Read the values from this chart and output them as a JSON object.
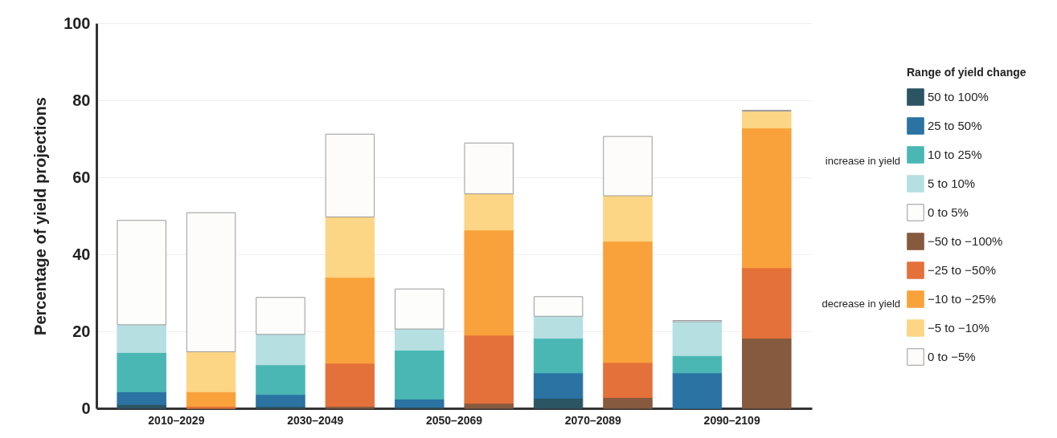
{
  "chart_data": {
    "type": "bar",
    "stacked": true,
    "ylabel": "Percentage of yield projections",
    "legend_title": "Range of yield change",
    "legend": "right",
    "grid": "y",
    "categories": [
      "2010–2029",
      null,
      "2030–2049",
      null,
      "2050–2069",
      null,
      "2070–2089",
      null,
      "2090–2109",
      null
    ],
    "ylim": [
      0,
      100
    ],
    "yticks": [
      0,
      20,
      40,
      60,
      80,
      100
    ],
    "series": [
      {
        "name": "50 to 100%",
        "color": "#2b5563",
        "values": [
          1,
          null,
          0.5,
          null,
          0.3,
          null,
          2.6,
          null,
          0,
          null
        ]
      },
      {
        "name": "25 to 50%",
        "color": "#2a73a3",
        "values": [
          3.3,
          null,
          3.1,
          null,
          2.1,
          null,
          6.6,
          null,
          9.2,
          null
        ]
      },
      {
        "name": "10 to 25%",
        "color": "#4bb7b4",
        "values": [
          10.2,
          null,
          7.7,
          null,
          12.7,
          null,
          9.0,
          null,
          4.5,
          null
        ]
      },
      {
        "name": "5 to 10%",
        "color": "#b6dfe2",
        "values": [
          7.2,
          null,
          7.9,
          null,
          5.5,
          null,
          5.7,
          null,
          8.8,
          null
        ]
      },
      {
        "name": "0 to 5%",
        "color": "#fdfdfc",
        "values": [
          27.1,
          null,
          9.6,
          null,
          10.4,
          null,
          5.1,
          null,
          0.3,
          null
        ]
      },
      {
        "name": "−50 to −100%",
        "color": "#865a3e",
        "values": [
          null,
          0,
          null,
          0.5,
          null,
          1.3,
          null,
          2.8,
          null,
          18.2
        ]
      },
      {
        "name": "−25 to −50%",
        "color": "#e4703a",
        "values": [
          null,
          0.5,
          null,
          11.2,
          null,
          17.7,
          null,
          9.1,
          null,
          18.3
        ]
      },
      {
        "name": "−10 to −25%",
        "color": "#f9a23b",
        "values": [
          null,
          3.8,
          null,
          22.3,
          null,
          27.3,
          null,
          31.5,
          null,
          36.3
        ]
      },
      {
        "name": "−5 to −10%",
        "color": "#fcd585",
        "values": [
          null,
          10.4,
          null,
          15.7,
          null,
          9.4,
          null,
          11.8,
          null,
          4.4
        ]
      },
      {
        "name": "0 to −5%",
        "color": "#fdfcfa",
        "values": [
          null,
          36.1,
          null,
          21.5,
          null,
          13.2,
          null,
          15.4,
          null,
          0.2
        ]
      }
    ],
    "annotations": [
      "increase in yield",
      "decrease in yield"
    ]
  }
}
